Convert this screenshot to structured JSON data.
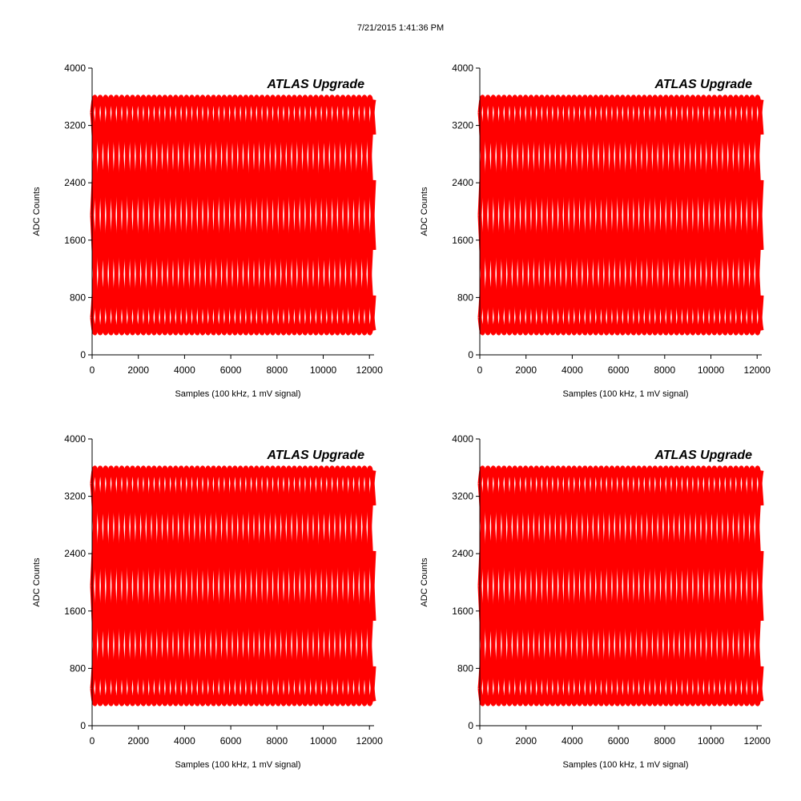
{
  "window": {
    "timestamp": "7/21/2015 1:41:36 PM"
  },
  "chart_data": [
    {
      "type": "line",
      "title": "ATLAS Upgrade",
      "xlabel": "Samples (100 kHz, 1 mV signal)",
      "ylabel": "ADC Counts",
      "xlim": [
        0,
        12200
      ],
      "ylim": [
        0,
        4000
      ],
      "xticks": [
        0,
        2000,
        4000,
        6000,
        8000,
        10000,
        12000
      ],
      "yticks": [
        0,
        800,
        1600,
        2400,
        3200,
        4000
      ],
      "xtick_labels": [
        "0",
        "2000",
        "4000",
        "6000",
        "8000",
        "10000",
        "12000"
      ],
      "ytick_labels": [
        "0",
        "800",
        "1600",
        "2400",
        "3200",
        "4000"
      ],
      "grid": false,
      "legend": "none",
      "color": "#ff0000",
      "signal": {
        "form": "sine",
        "min": 300,
        "max": 3600,
        "period_samples": 1400,
        "phase_count": 6
      }
    },
    {
      "type": "line",
      "title": "ATLAS Upgrade",
      "xlabel": "Samples (100 kHz, 1 mV signal)",
      "ylabel": "ADC Counts",
      "xlim": [
        0,
        12200
      ],
      "ylim": [
        0,
        4000
      ],
      "xticks": [
        0,
        2000,
        4000,
        6000,
        8000,
        10000,
        12000
      ],
      "yticks": [
        0,
        800,
        1600,
        2400,
        3200,
        4000
      ],
      "xtick_labels": [
        "0",
        "2000",
        "4000",
        "6000",
        "8000",
        "10000",
        "12000"
      ],
      "ytick_labels": [
        "0",
        "800",
        "1600",
        "2400",
        "3200",
        "4000"
      ],
      "grid": false,
      "legend": "none",
      "color": "#ff0000",
      "signal": {
        "form": "sine",
        "min": 300,
        "max": 3600,
        "period_samples": 1400,
        "phase_count": 6
      }
    },
    {
      "type": "line",
      "title": "ATLAS Upgrade",
      "xlabel": "Samples (100 kHz, 1 mV signal)",
      "ylabel": "ADC Counts",
      "xlim": [
        0,
        12200
      ],
      "ylim": [
        0,
        4000
      ],
      "xticks": [
        0,
        2000,
        4000,
        6000,
        8000,
        10000,
        12000
      ],
      "yticks": [
        0,
        800,
        1600,
        2400,
        3200,
        4000
      ],
      "xtick_labels": [
        "0",
        "2000",
        "4000",
        "6000",
        "8000",
        "10000",
        "12000"
      ],
      "ytick_labels": [
        "0",
        "800",
        "1600",
        "2400",
        "3200",
        "4000"
      ],
      "grid": false,
      "legend": "none",
      "color": "#ff0000",
      "signal": {
        "form": "sine",
        "min": 300,
        "max": 3600,
        "period_samples": 1400,
        "phase_count": 6
      }
    },
    {
      "type": "line",
      "title": "ATLAS Upgrade",
      "xlabel": "Samples (100 kHz, 1 mV signal)",
      "ylabel": "ADC Counts",
      "xlim": [
        0,
        12200
      ],
      "ylim": [
        0,
        4000
      ],
      "xticks": [
        0,
        2000,
        4000,
        6000,
        8000,
        10000,
        12000
      ],
      "yticks": [
        0,
        800,
        1600,
        2400,
        3200,
        4000
      ],
      "xtick_labels": [
        "0",
        "2000",
        "4000",
        "6000",
        "8000",
        "10000",
        "12000"
      ],
      "ytick_labels": [
        "0",
        "800",
        "1600",
        "2400",
        "3200",
        "4000"
      ],
      "grid": false,
      "legend": "none",
      "color": "#ff0000",
      "signal": {
        "form": "sine",
        "min": 300,
        "max": 3600,
        "period_samples": 1400,
        "phase_count": 6
      }
    }
  ]
}
